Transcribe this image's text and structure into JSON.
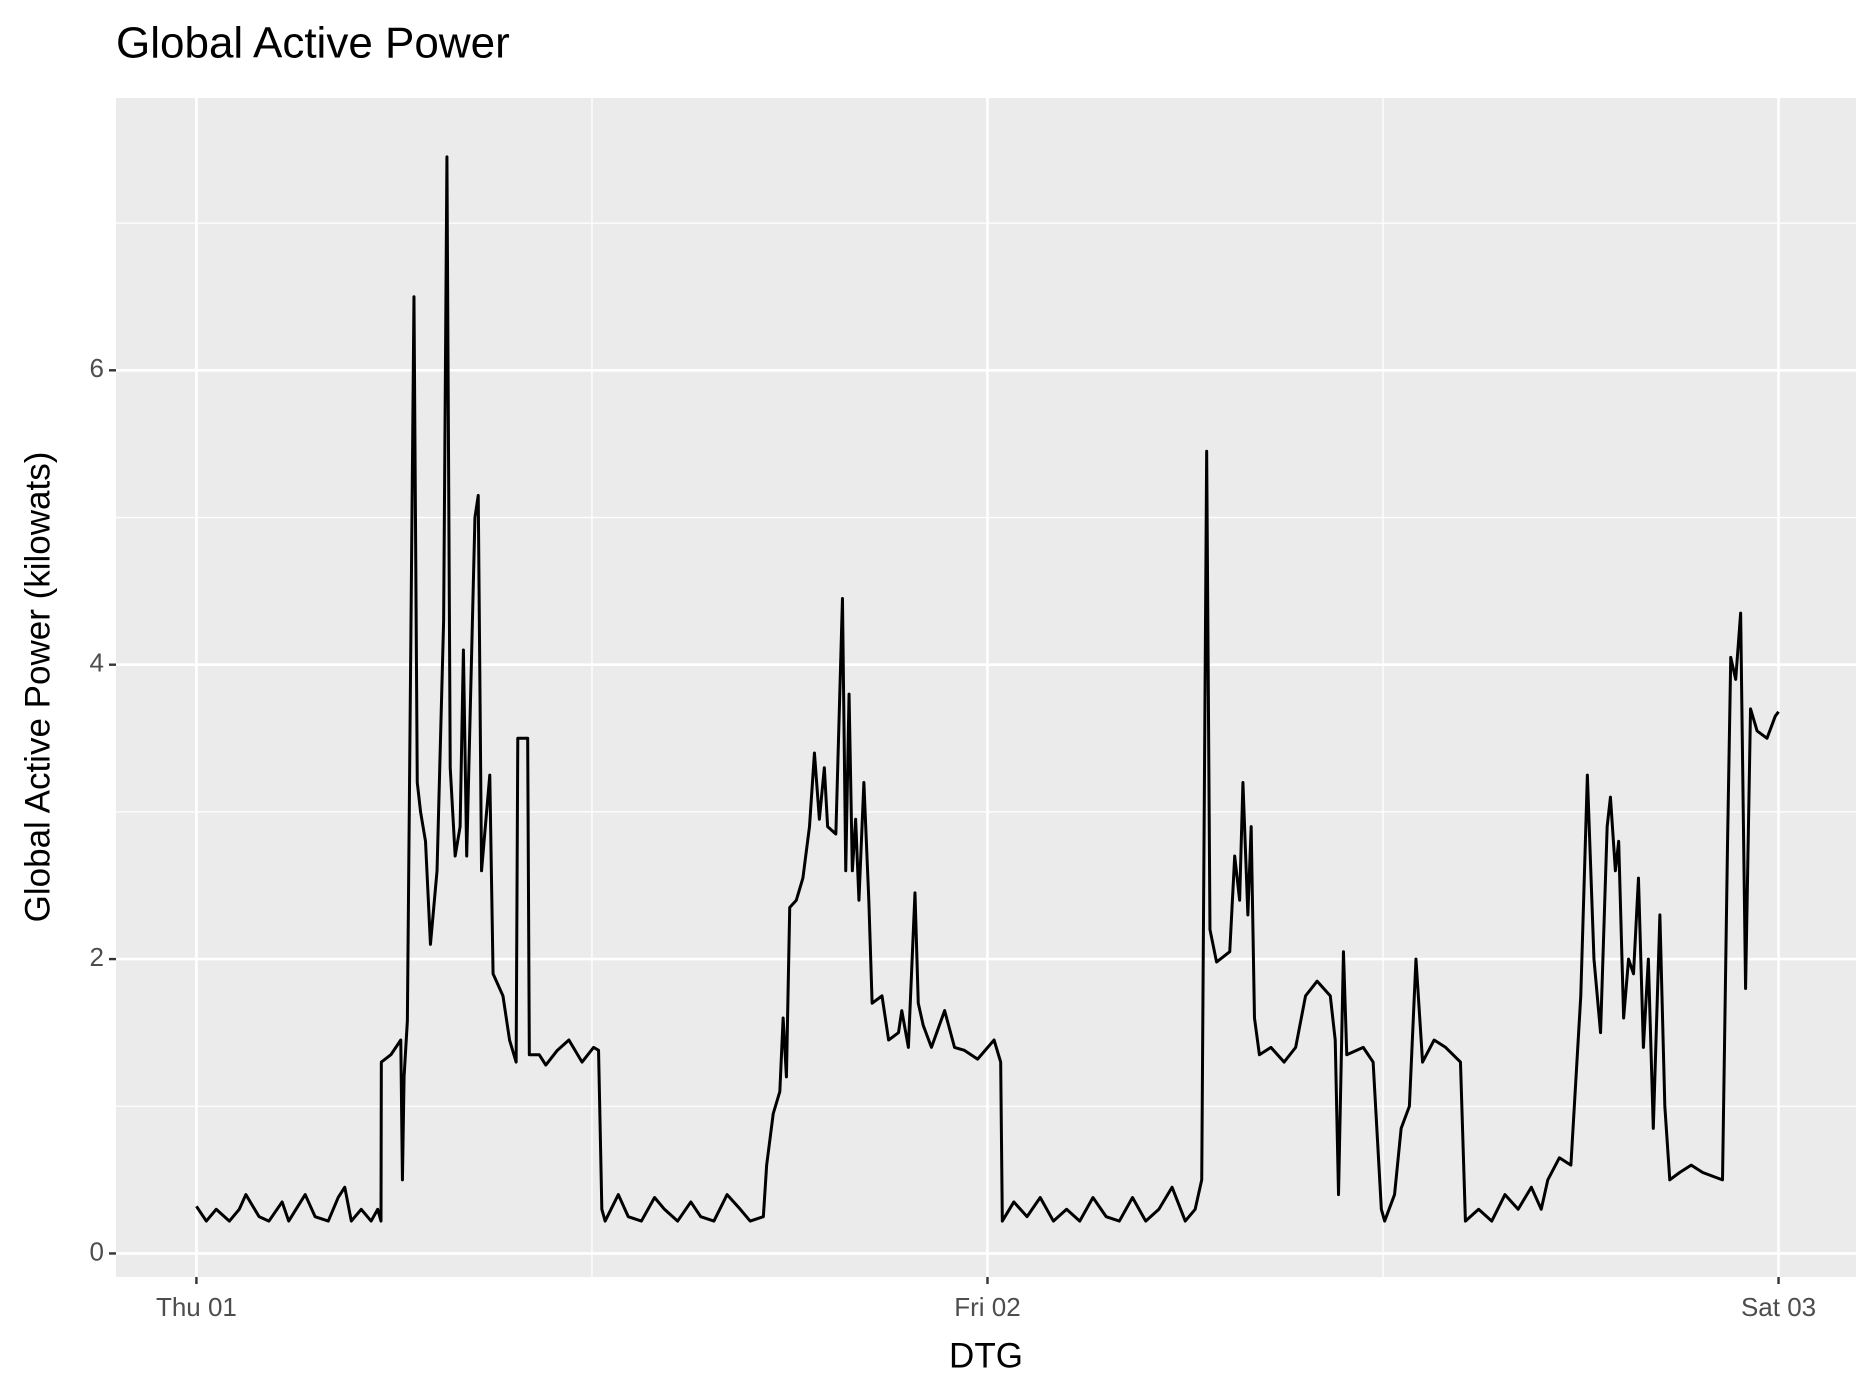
{
  "chart_data": {
    "type": "line",
    "title": "Global Active Power",
    "x_label": "DTG",
    "y_label": "Global Active Power (kilowats)",
    "x": [
      0,
      0.3,
      0.6,
      1,
      1.3,
      1.5,
      1.9,
      2.2,
      2.6,
      2.8,
      3.3,
      3.6,
      4,
      4.3,
      4.5,
      4.7,
      5,
      5.3,
      5.5,
      5.6,
      5.61,
      5.9,
      6.2,
      6.25,
      6.3,
      6.4,
      6.6,
      6.7,
      6.8,
      6.95,
      7.1,
      7.3,
      7.5,
      7.6,
      7.7,
      7.85,
      8,
      8.1,
      8.2,
      8.45,
      8.55,
      8.65,
      8.9,
      9,
      9.3,
      9.5,
      9.7,
      9.75,
      10.05,
      10.1,
      10.4,
      10.6,
      10.95,
      11.3,
      11.7,
      12.05,
      12.2,
      12.3,
      12.4,
      12.8,
      13.1,
      13.5,
      13.9,
      14.2,
      14.6,
      15,
      15.3,
      15.7,
      16.1,
      16.5,
      16.8,
      17.2,
      17.3,
      17.5,
      17.7,
      17.8,
      17.9,
      18,
      18.2,
      18.4,
      18.6,
      18.75,
      18.9,
      19.05,
      19.15,
      19.4,
      19.6,
      19.7,
      19.8,
      19.9,
      20,
      20.1,
      20.25,
      20.4,
      20.5,
      20.8,
      21,
      21.3,
      21.4,
      21.6,
      21.8,
      21.9,
      22.05,
      22.3,
      22.7,
      23,
      23.3,
      23.7,
      24.2,
      24.4,
      24.45,
      24.8,
      25.2,
      25.6,
      26,
      26.4,
      26.8,
      27.2,
      27.6,
      28,
      28.4,
      28.8,
      29.2,
      29.6,
      30,
      30.3,
      30.5,
      30.65,
      30.75,
      30.95,
      31.35,
      31.5,
      31.65,
      31.75,
      31.9,
      32,
      32.1,
      32.25,
      32.6,
      33,
      33.35,
      33.65,
      34,
      34.4,
      34.55,
      34.65,
      34.8,
      34.9,
      35.4,
      35.7,
      35.95,
      36.05,
      36.35,
      36.55,
      36.8,
      37,
      37.2,
      37.55,
      37.9,
      38.35,
      38.5,
      38.9,
      39.3,
      39.7,
      40.1,
      40.5,
      40.8,
      41,
      41.35,
      41.7,
      42,
      42.2,
      42.4,
      42.6,
      42.8,
      42.9,
      43.05,
      43.15,
      43.3,
      43.45,
      43.6,
      43.75,
      43.9,
      44.05,
      44.2,
      44.4,
      44.55,
      44.7,
      45,
      45.35,
      45.7,
      46.3,
      46.45,
      46.55,
      46.7,
      46.85,
      47,
      47.15,
      47.35,
      47.65,
      47.9,
      48
    ],
    "values": [
      0.32,
      0.22,
      0.3,
      0.22,
      0.3,
      0.4,
      0.25,
      0.22,
      0.35,
      0.22,
      0.4,
      0.25,
      0.22,
      0.38,
      0.45,
      0.22,
      0.3,
      0.22,
      0.3,
      0.22,
      1.3,
      1.35,
      1.45,
      0.5,
      1.2,
      1.58,
      6.5,
      3.2,
      3.0,
      2.8,
      2.1,
      2.6,
      4.3,
      7.45,
      3.3,
      2.7,
      2.9,
      4.1,
      2.7,
      5.0,
      5.15,
      2.6,
      3.25,
      1.9,
      1.75,
      1.45,
      1.3,
      3.5,
      3.5,
      1.35,
      1.35,
      1.28,
      1.38,
      1.45,
      1.3,
      1.4,
      1.38,
      0.3,
      0.22,
      0.4,
      0.25,
      0.22,
      0.38,
      0.3,
      0.22,
      0.35,
      0.25,
      0.22,
      0.4,
      0.3,
      0.22,
      0.25,
      0.6,
      0.95,
      1.1,
      1.6,
      1.2,
      2.35,
      2.4,
      2.55,
      2.9,
      3.4,
      2.95,
      3.3,
      2.9,
      2.85,
      4.45,
      2.6,
      3.8,
      2.6,
      2.95,
      2.4,
      3.2,
      2.4,
      1.7,
      1.75,
      1.45,
      1.5,
      1.65,
      1.4,
      2.45,
      1.7,
      1.55,
      1.4,
      1.65,
      1.4,
      1.38,
      1.32,
      1.45,
      1.3,
      0.22,
      0.35,
      0.25,
      0.38,
      0.22,
      0.3,
      0.22,
      0.38,
      0.25,
      0.22,
      0.38,
      0.22,
      0.3,
      0.45,
      0.22,
      0.3,
      0.5,
      5.45,
      2.2,
      1.98,
      2.05,
      2.7,
      2.4,
      3.2,
      2.3,
      2.9,
      1.6,
      1.35,
      1.4,
      1.3,
      1.4,
      1.75,
      1.85,
      1.75,
      1.45,
      0.4,
      2.05,
      1.35,
      1.4,
      1.3,
      0.3,
      0.22,
      0.4,
      0.85,
      1.0,
      2.0,
      1.3,
      1.45,
      1.4,
      1.3,
      0.22,
      0.3,
      0.22,
      0.4,
      0.3,
      0.45,
      0.3,
      0.5,
      0.65,
      0.6,
      1.75,
      3.25,
      2.0,
      1.5,
      2.9,
      3.1,
      2.6,
      2.8,
      1.6,
      2.0,
      1.9,
      2.55,
      1.4,
      2.0,
      0.85,
      2.3,
      1.0,
      0.5,
      0.55,
      0.6,
      0.55,
      0.5,
      2.75,
      4.05,
      3.9,
      4.35,
      1.8,
      3.7,
      3.55,
      3.5,
      3.65,
      3.68
    ],
    "color": "#000000",
    "xlim": [
      -2.44,
      50.35
    ],
    "ylim": [
      -0.16,
      7.85
    ],
    "xticks": [
      {
        "value": 0,
        "label": "Thu 01"
      },
      {
        "value": 24,
        "label": "Fri 02"
      },
      {
        "value": 48,
        "label": "Sat 03"
      }
    ],
    "yticks": [
      0,
      2,
      4,
      6
    ],
    "x_minor_grid": [
      12,
      36
    ],
    "y_minor_grid": [
      1,
      3,
      5,
      7
    ],
    "grid": true
  }
}
